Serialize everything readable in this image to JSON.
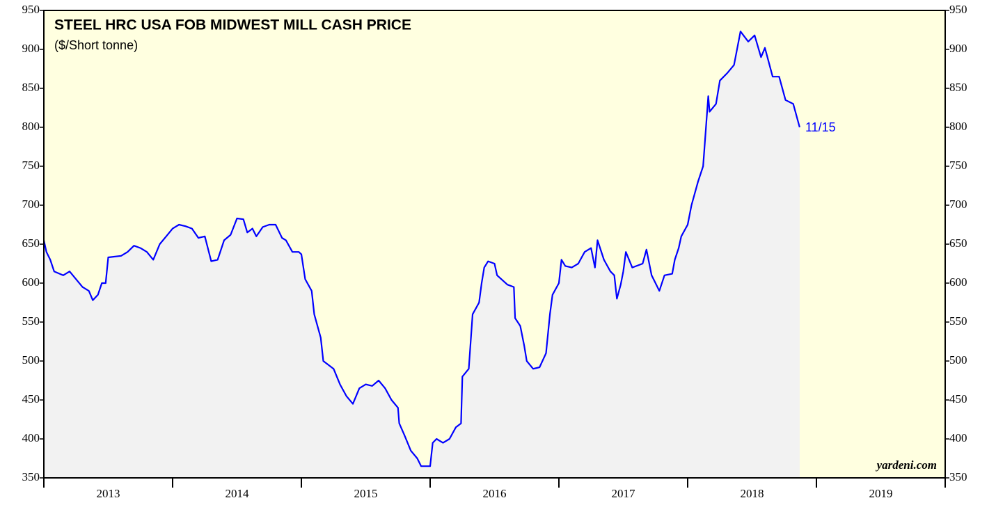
{
  "chart_data": {
    "type": "line",
    "title": "STEEL HRC USA FOB MIDWEST MILL CASH PRICE",
    "subtitle": "($/Short tonne)",
    "annotation": "11/15",
    "source": "yardeni.com",
    "x": [
      2013.0,
      2013.02,
      2013.05,
      2013.08,
      2013.15,
      2013.2,
      2013.25,
      2013.3,
      2013.35,
      2013.38,
      2013.42,
      2013.45,
      2013.48,
      2013.5,
      2013.6,
      2013.65,
      2013.7,
      2013.75,
      2013.8,
      2013.85,
      2013.9,
      2013.95,
      2014.0,
      2014.05,
      2014.1,
      2014.15,
      2014.2,
      2014.25,
      2014.3,
      2014.35,
      2014.4,
      2014.45,
      2014.5,
      2014.55,
      2014.58,
      2014.62,
      2014.65,
      2014.7,
      2014.75,
      2014.8,
      2014.85,
      2014.88,
      2014.93,
      2014.98,
      2015.0,
      2015.03,
      2015.08,
      2015.1,
      2015.15,
      2015.17,
      2015.25,
      2015.3,
      2015.35,
      2015.4,
      2015.45,
      2015.5,
      2015.55,
      2015.6,
      2015.65,
      2015.7,
      2015.75,
      2015.76,
      2015.8,
      2015.85,
      2015.9,
      2015.93,
      2016.0,
      2016.02,
      2016.05,
      2016.1,
      2016.15,
      2016.2,
      2016.24,
      2016.25,
      2016.3,
      2016.33,
      2016.38,
      2016.4,
      2016.42,
      2016.45,
      2016.5,
      2016.52,
      2016.6,
      2016.65,
      2016.66,
      2016.7,
      2016.73,
      2016.75,
      2016.8,
      2016.85,
      2016.9,
      2016.93,
      2016.95,
      2017.0,
      2017.02,
      2017.05,
      2017.1,
      2017.15,
      2017.2,
      2017.25,
      2017.28,
      2017.3,
      2017.35,
      2017.4,
      2017.43,
      2017.45,
      2017.48,
      2017.5,
      2017.52,
      2017.57,
      2017.65,
      2017.68,
      2017.72,
      2017.75,
      2017.78,
      2017.82,
      2017.88,
      2017.9,
      2017.93,
      2017.95,
      2018.0,
      2018.03,
      2018.08,
      2018.12,
      2018.16,
      2018.17,
      2018.22,
      2018.25,
      2018.31,
      2018.36,
      2018.41,
      2018.47,
      2018.52,
      2018.57,
      2018.6,
      2018.66,
      2018.71,
      2018.76,
      2018.82,
      2018.87
    ],
    "series": [
      {
        "color": "#0000ff",
        "values": [
          655,
          640,
          630,
          615,
          610,
          615,
          605,
          595,
          590,
          578,
          585,
          600,
          600,
          633,
          635,
          640,
          648,
          645,
          640,
          630,
          650,
          660,
          670,
          675,
          673,
          670,
          658,
          660,
          628,
          630,
          655,
          662,
          683,
          682,
          665,
          670,
          660,
          672,
          675,
          675,
          658,
          655,
          640,
          640,
          637,
          605,
          590,
          560,
          530,
          500,
          490,
          470,
          455,
          445,
          465,
          470,
          468,
          475,
          465,
          450,
          440,
          420,
          405,
          385,
          375,
          365,
          365,
          395,
          400,
          395,
          400,
          415,
          420,
          480,
          490,
          560,
          575,
          600,
          620,
          628,
          625,
          610,
          598,
          595,
          555,
          545,
          520,
          500,
          490,
          492,
          510,
          560,
          585,
          600,
          630,
          622,
          620,
          625,
          640,
          645,
          620,
          655,
          630,
          615,
          610,
          580,
          598,
          615,
          640,
          620,
          625,
          643,
          610,
          600,
          590,
          610,
          612,
          630,
          645,
          660,
          675,
          700,
          730,
          750,
          840,
          820,
          830,
          860,
          870,
          880,
          923,
          910,
          918,
          890,
          902,
          865,
          865,
          835,
          830,
          800
        ]
      }
    ],
    "xlim": [
      2013,
      2020
    ],
    "xticks": [
      2013,
      2014,
      2015,
      2016,
      2017,
      2018,
      2019
    ],
    "ylim": [
      350,
      950
    ],
    "yticks": [
      350,
      400,
      450,
      500,
      550,
      600,
      650,
      700,
      750,
      800,
      850,
      900,
      950
    ],
    "background": "#ffffe0",
    "area_color": "#f2f2f2"
  }
}
